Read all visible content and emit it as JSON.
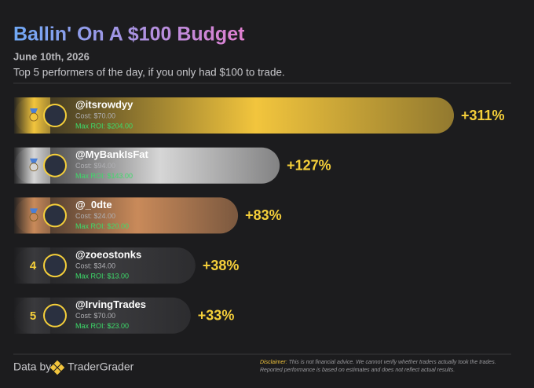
{
  "chart_data": {
    "type": "bar",
    "orientation": "horizontal",
    "title": "Ballin' On A $100 Budget",
    "date": "June 10th, 2026",
    "subtitle": "Top 5 performers of the day, if you only had $100 to trade.",
    "ranks": [
      null,
      null,
      null,
      "4",
      "5"
    ],
    "categories": [
      "@itsrowdyy",
      "@MyBankIsFat",
      "@_0dte",
      "@zoeostonks",
      "@IrvingTrades"
    ],
    "costs": [
      "Cost: $70.00",
      "Cost: $94.00",
      "Cost: $24.00",
      "Cost: $34.00",
      "Cost: $70.00"
    ],
    "max_roi": [
      "Max ROI: $204.00",
      "Max ROI: $143.00",
      "Max ROI: $20.00",
      "Max ROI: $13.00",
      "Max ROI: $23.00"
    ],
    "values": [
      311,
      127,
      83,
      38,
      33
    ],
    "value_labels": [
      "+311%",
      "+127%",
      "+83%",
      "+38%",
      "+33%"
    ],
    "colors": [
      "#f2c53d",
      "#d6d6d6",
      "#c98a5a",
      "#3a3a3d",
      "#3a3a3d"
    ],
    "footer": {
      "source_prefix": "Data by",
      "source": "TraderGrader",
      "disclaimer_label": "Disclaimer:",
      "disclaimer": "This is not financial advice. We cannot verify whether traders actually took the trades. Reported performance is based on estimates and does not reflect actual results."
    }
  }
}
